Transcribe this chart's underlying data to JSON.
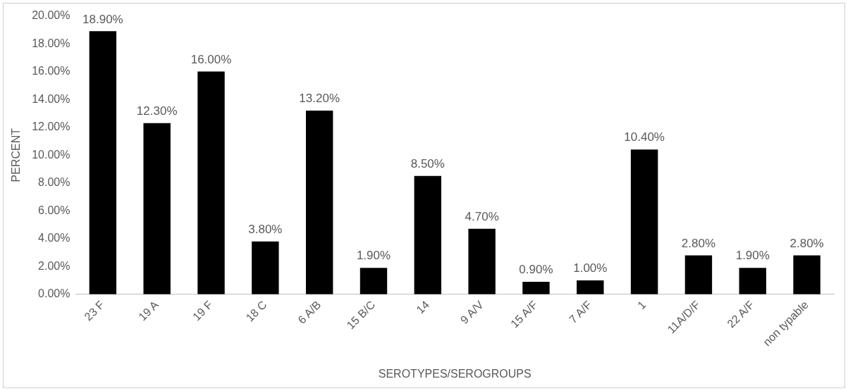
{
  "chart_data": {
    "type": "bar",
    "xlabel": "SEROTYPES/SEROGROUPS",
    "ylabel": "PERCENT",
    "categories": [
      "23 F",
      "19 A",
      "19 F",
      "18 C",
      "6 A/B",
      "15 B/C",
      "14",
      "9 A/V",
      "15 A/F",
      "7 A/F",
      "1",
      "11A/D/F",
      "22 A/F",
      "non typable"
    ],
    "values": [
      18.9,
      12.3,
      16.0,
      3.8,
      13.2,
      1.9,
      8.5,
      4.7,
      0.9,
      1.0,
      10.4,
      2.8,
      1.9,
      2.8
    ],
    "value_labels": [
      "18.90%",
      "12.30%",
      "16.00%",
      "3.80%",
      "13.20%",
      "1.90%",
      "8.50%",
      "4.70%",
      "0.90%",
      "1.00%",
      "10.40%",
      "2.80%",
      "1.90%",
      "2.80%"
    ],
    "color": "#000000",
    "ylim": [
      0,
      20
    ],
    "yticks": [
      {
        "value": 0,
        "label": "0.00%"
      },
      {
        "value": 2,
        "label": "2.00%"
      },
      {
        "value": 4,
        "label": "4.00%"
      },
      {
        "value": 6,
        "label": "6.00%"
      },
      {
        "value": 8,
        "label": "8.00%"
      },
      {
        "value": 10,
        "label": "10.00%"
      },
      {
        "value": 12,
        "label": "12.00%"
      },
      {
        "value": 14,
        "label": "14.00%"
      },
      {
        "value": 16,
        "label": "16.00%"
      },
      {
        "value": 18,
        "label": "18.00%"
      },
      {
        "value": 20,
        "label": "20.00%"
      }
    ],
    "grid": false,
    "legend": false
  }
}
